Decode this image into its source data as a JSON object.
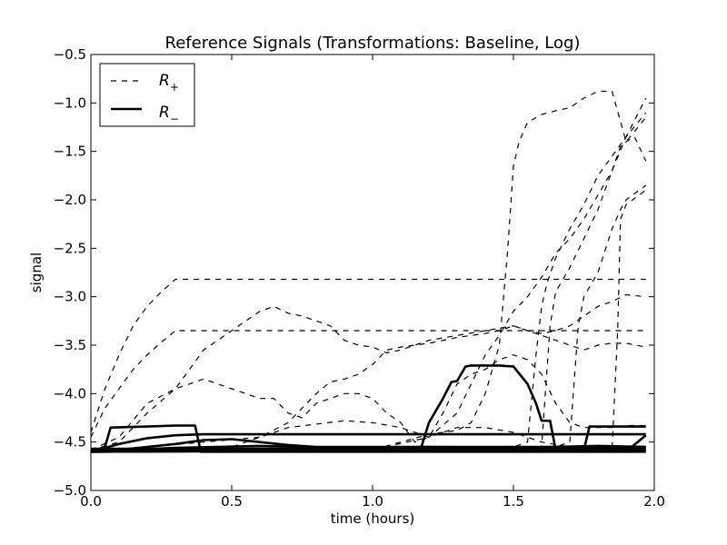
{
  "chart_data": {
    "type": "line",
    "title": "Reference Signals (Transformations: Baseline, Log)",
    "xlabel": "time (hours)",
    "ylabel": "signal",
    "xlim": [
      0.0,
      2.0
    ],
    "ylim": [
      -5.0,
      -0.5
    ],
    "xticks": [
      "0.0",
      "0.5",
      "1.0",
      "1.5",
      "2.0"
    ],
    "yticks": [
      "−5.0",
      "−4.5",
      "−4.0",
      "−3.5",
      "−3.0",
      "−2.5",
      "−2.0",
      "−1.5",
      "−1.0",
      "−0.5"
    ],
    "grid": false,
    "legend": {
      "placement": "upper-left",
      "entries": [
        {
          "label_main": "R",
          "label_sub": "+",
          "style": "dashed"
        },
        {
          "label_main": "R",
          "label_sub": "−",
          "style": "solid-thick"
        }
      ]
    },
    "series": [
      {
        "group": "R+",
        "x": [
          0.0,
          0.05,
          0.1,
          0.15,
          0.2,
          0.25,
          0.3,
          1.97
        ],
        "y": [
          -4.4,
          -3.95,
          -3.6,
          -3.3,
          -3.1,
          -2.95,
          -2.82,
          -2.82
        ]
      },
      {
        "group": "R+",
        "x": [
          0.0,
          0.05,
          0.1,
          0.15,
          0.2,
          0.25,
          0.3,
          1.97
        ],
        "y": [
          -4.45,
          -4.15,
          -3.95,
          -3.75,
          -3.6,
          -3.47,
          -3.35,
          -3.35
        ]
      },
      {
        "group": "R+",
        "x": [
          0.0,
          0.1,
          0.2,
          0.3,
          0.35,
          0.4,
          0.45,
          0.5,
          0.55,
          0.6,
          0.65,
          0.7,
          0.75,
          0.8,
          0.85,
          0.9,
          0.95,
          1.0,
          1.05,
          1.1,
          1.15,
          1.2,
          1.3,
          1.4,
          1.5,
          1.6,
          1.7,
          1.75,
          1.8,
          1.85,
          1.9,
          1.97
        ],
        "y": [
          -4.58,
          -4.5,
          -4.2,
          -3.95,
          -3.75,
          -3.55,
          -3.45,
          -3.35,
          -3.25,
          -3.15,
          -3.1,
          -3.17,
          -3.2,
          -3.25,
          -3.3,
          -3.45,
          -3.5,
          -3.52,
          -3.58,
          -3.55,
          -3.5,
          -3.45,
          -3.4,
          -3.35,
          -3.3,
          -3.4,
          -3.5,
          -3.55,
          -3.5,
          -3.48,
          -3.48,
          -3.52
        ]
      },
      {
        "group": "R+",
        "x": [
          0.0,
          0.1,
          0.2,
          0.3,
          0.35,
          0.4,
          0.45,
          0.5,
          0.55,
          0.6,
          0.65,
          0.7,
          0.75,
          0.8,
          0.85,
          0.9,
          0.95,
          1.0,
          1.05,
          1.1,
          1.15,
          1.2,
          1.25,
          1.3,
          1.35,
          1.4,
          1.45,
          1.5,
          1.55,
          1.6,
          1.65,
          1.7,
          1.75,
          1.8,
          1.85,
          1.9,
          1.97
        ],
        "y": [
          -4.58,
          -4.45,
          -4.1,
          -3.95,
          -3.9,
          -3.85,
          -3.9,
          -3.95,
          -4.0,
          -4.05,
          -4.05,
          -4.2,
          -4.25,
          -4.1,
          -4.05,
          -4.0,
          -4.0,
          -4.05,
          -4.2,
          -4.3,
          -4.5,
          -4.45,
          -4.2,
          -3.9,
          -3.8,
          -3.75,
          -3.65,
          -3.6,
          -3.65,
          -3.8,
          -4.1,
          -4.3,
          -4.35,
          -4.35,
          -4.35,
          -4.33,
          -4.33
        ]
      },
      {
        "group": "R+",
        "x": [
          0.0,
          0.2,
          0.4,
          0.6,
          0.7,
          0.75,
          0.8,
          0.85,
          0.9,
          0.95,
          1.0,
          1.05,
          1.1,
          1.15,
          1.2,
          1.25,
          1.3,
          1.35,
          1.4,
          1.45,
          1.5,
          1.55,
          1.6,
          1.65,
          1.7,
          1.75,
          1.8,
          1.85,
          1.9,
          1.97
        ],
        "y": [
          -4.6,
          -4.55,
          -4.5,
          -4.45,
          -4.3,
          -4.15,
          -4.0,
          -3.88,
          -3.85,
          -3.8,
          -3.7,
          -3.55,
          -3.52,
          -3.5,
          -3.48,
          -3.45,
          -3.42,
          -3.4,
          -3.38,
          -3.35,
          -3.3,
          -3.35,
          -3.38,
          -3.35,
          -3.3,
          -3.2,
          -3.1,
          -3.05,
          -2.98,
          -3.0
        ]
      },
      {
        "group": "R+",
        "x": [
          0.0,
          1.0,
          1.1,
          1.2,
          1.3,
          1.35,
          1.4,
          1.45,
          1.48,
          1.5,
          1.52,
          1.55,
          1.6,
          1.65,
          1.7,
          1.75,
          1.8,
          1.85,
          1.9,
          1.97
        ],
        "y": [
          -4.6,
          -4.58,
          -4.5,
          -4.42,
          -4.38,
          -4.3,
          -4.0,
          -3.5,
          -2.5,
          -1.65,
          -1.4,
          -1.2,
          -1.12,
          -1.08,
          -1.05,
          -0.95,
          -0.88,
          -0.88,
          -1.4,
          -1.15
        ]
      },
      {
        "group": "R+",
        "x": [
          0.0,
          1.0,
          1.2,
          1.3,
          1.35,
          1.4,
          1.45,
          1.5,
          1.55,
          1.6,
          1.65,
          1.7,
          1.75,
          1.8,
          1.85,
          1.88,
          1.9,
          1.93,
          1.97
        ],
        "y": [
          -4.6,
          -4.58,
          -4.45,
          -4.2,
          -3.9,
          -3.6,
          -3.4,
          -3.15,
          -3.0,
          -2.8,
          -2.55,
          -2.4,
          -2.2,
          -1.95,
          -1.7,
          -1.45,
          -1.4,
          -1.35,
          -1.6
        ]
      },
      {
        "group": "R+",
        "x": [
          0.0,
          1.4,
          1.5,
          1.55,
          1.58,
          1.6,
          1.62,
          1.65,
          1.7,
          1.75,
          1.8,
          1.85,
          1.9,
          1.97
        ],
        "y": [
          -4.6,
          -4.58,
          -4.55,
          -4.5,
          -3.6,
          -3.1,
          -2.85,
          -2.6,
          -2.3,
          -2.05,
          -1.75,
          -1.55,
          -1.35,
          -0.95
        ]
      },
      {
        "group": "R+",
        "x": [
          0.0,
          1.55,
          1.6,
          1.63,
          1.65,
          1.7,
          1.75,
          1.8,
          1.85,
          1.9,
          1.97
        ],
        "y": [
          -4.6,
          -4.58,
          -4.55,
          -3.3,
          -2.95,
          -2.7,
          -2.4,
          -2.1,
          -1.7,
          -1.35,
          -1.1
        ]
      },
      {
        "group": "R+",
        "x": [
          0.0,
          1.65,
          1.7,
          1.73,
          1.75,
          1.8,
          1.85,
          1.88,
          1.9,
          1.97
        ],
        "y": [
          -4.6,
          -4.55,
          -4.5,
          -3.3,
          -3.0,
          -2.75,
          -2.3,
          -2.1,
          -2.0,
          -1.85
        ]
      },
      {
        "group": "R+",
        "x": [
          0.0,
          1.85,
          1.87,
          1.88,
          1.9,
          1.97
        ],
        "y": [
          -4.6,
          -4.58,
          -3.35,
          -2.2,
          -2.05,
          -1.9
        ]
      },
      {
        "group": "R+",
        "x": [
          0.0,
          0.5,
          0.7,
          0.9,
          1.0,
          1.1,
          1.2,
          1.3,
          1.4,
          1.5,
          1.6,
          1.7,
          1.75
        ],
        "y": [
          -4.6,
          -4.55,
          -4.35,
          -4.28,
          -4.3,
          -4.35,
          -4.45,
          -4.35,
          -4.35,
          -4.4,
          -4.5,
          -4.55,
          -4.58
        ]
      },
      {
        "group": "R-",
        "x": [
          0.0,
          0.05,
          0.07,
          0.2,
          0.3,
          0.37,
          0.39,
          1.97
        ],
        "y": [
          -4.6,
          -4.55,
          -4.35,
          -4.34,
          -4.33,
          -4.33,
          -4.6,
          -4.6
        ]
      },
      {
        "group": "R-",
        "x": [
          0.0,
          1.17,
          1.2,
          1.25,
          1.28,
          1.3,
          1.33,
          1.35,
          1.4,
          1.45,
          1.5,
          1.55,
          1.58,
          1.6,
          1.63,
          1.65,
          1.97
        ],
        "y": [
          -4.6,
          -4.58,
          -4.3,
          -4.05,
          -3.88,
          -3.87,
          -3.72,
          -3.71,
          -3.71,
          -3.71,
          -3.72,
          -3.9,
          -4.1,
          -4.28,
          -4.28,
          -4.58,
          -4.58
        ]
      },
      {
        "group": "R-",
        "x": [
          0.0,
          0.1,
          0.2,
          0.3,
          0.4,
          1.97
        ],
        "y": [
          -4.6,
          -4.52,
          -4.46,
          -4.43,
          -4.42,
          -4.42
        ]
      },
      {
        "group": "R-",
        "x": [
          0.0,
          1.75,
          1.77,
          1.97
        ],
        "y": [
          -4.6,
          -4.58,
          -4.34,
          -4.34
        ]
      },
      {
        "group": "R-",
        "x": [
          0.0,
          0.1,
          0.2,
          0.3,
          0.4,
          0.5,
          0.6,
          0.7,
          0.8,
          1.97
        ],
        "y": [
          -4.6,
          -4.58,
          -4.55,
          -4.52,
          -4.48,
          -4.47,
          -4.5,
          -4.53,
          -4.55,
          -4.55
        ]
      },
      {
        "group": "R-",
        "x": [
          0.0,
          1.9,
          1.92,
          1.97
        ],
        "y": [
          -4.6,
          -4.58,
          -4.55,
          -4.43
        ]
      },
      {
        "group": "R-",
        "x": [
          0.0,
          1.97
        ],
        "y": [
          -4.58,
          -4.58
        ]
      },
      {
        "group": "R-",
        "x": [
          0.0,
          1.97
        ],
        "y": [
          -4.57,
          -4.57
        ]
      },
      {
        "group": "R-",
        "x": [
          0.0,
          0.3,
          0.6,
          0.9,
          1.2,
          1.5,
          1.8,
          1.97
        ],
        "y": [
          -4.6,
          -4.56,
          -4.54,
          -4.56,
          -4.55,
          -4.56,
          -4.54,
          -4.55
        ]
      }
    ]
  }
}
